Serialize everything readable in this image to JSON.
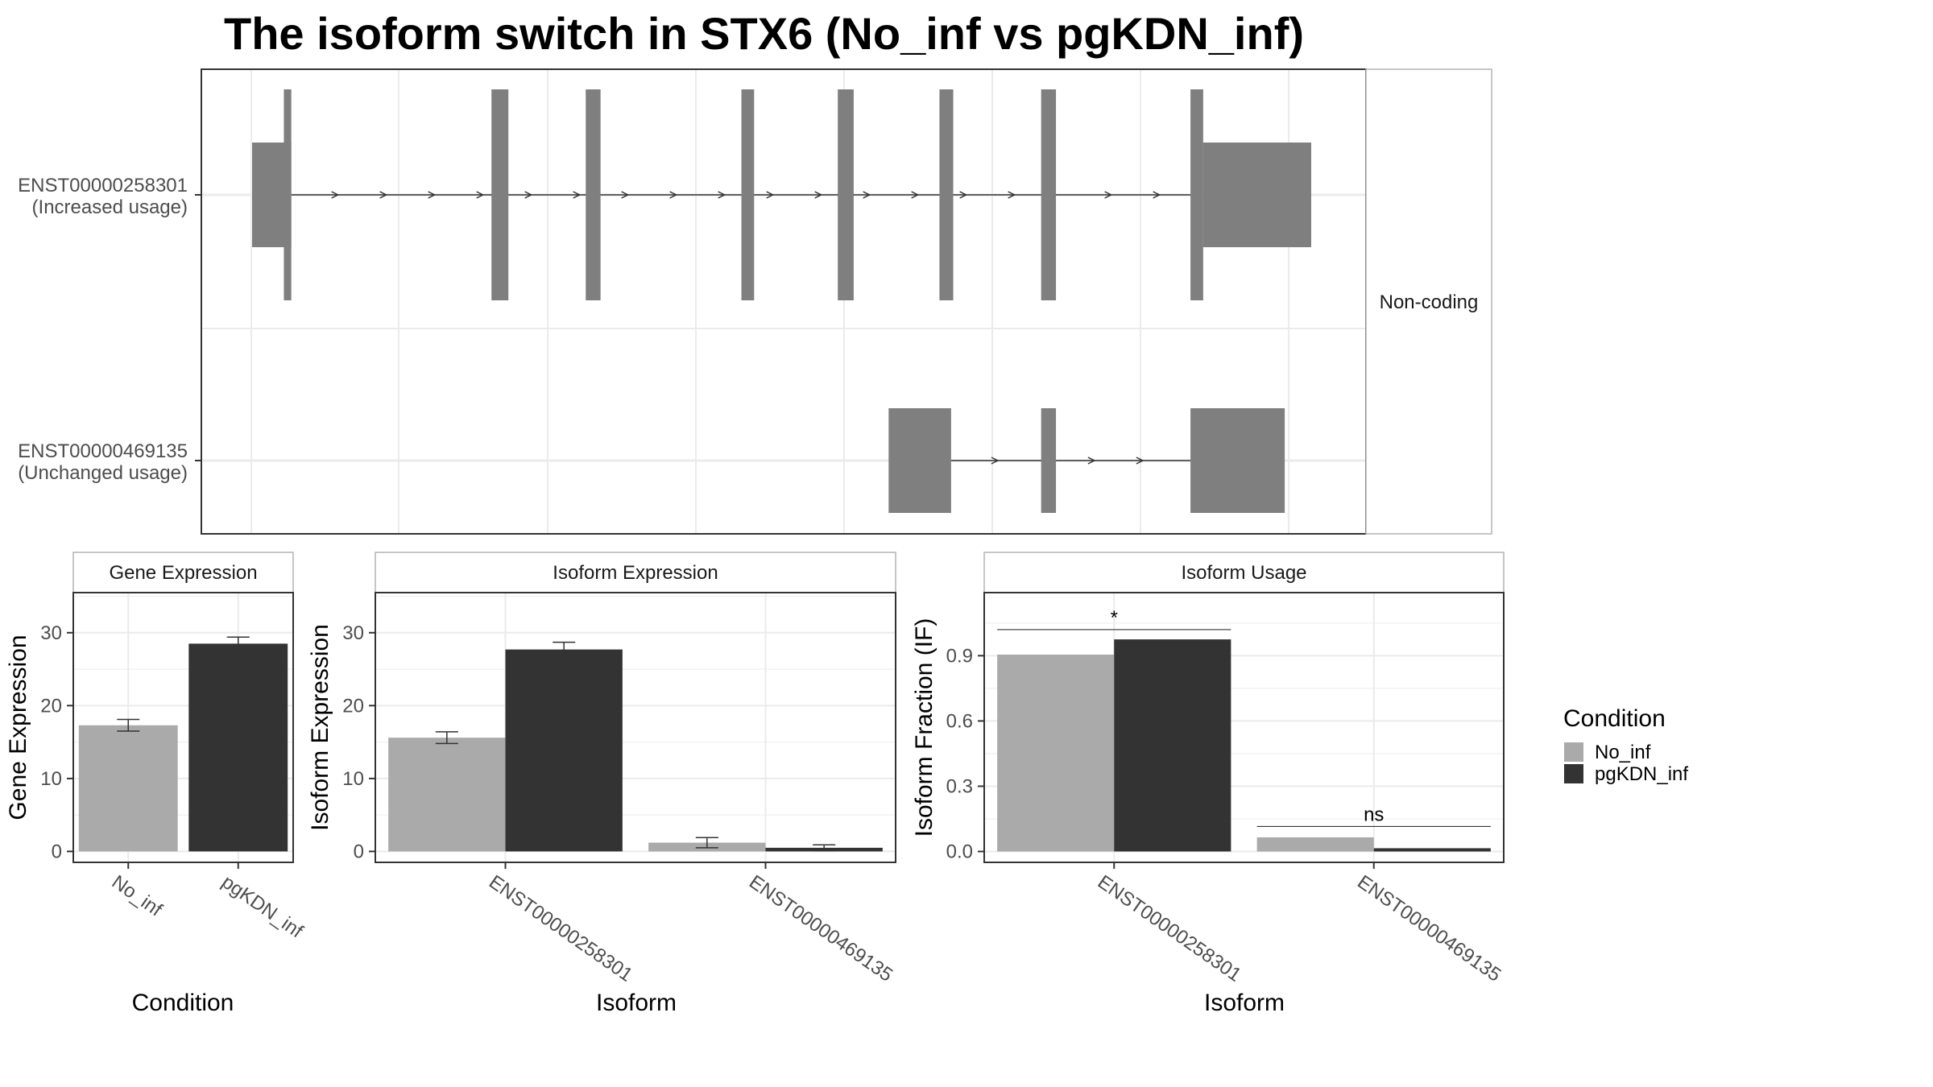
{
  "title": "The isoform switch in STX6 (No_inf vs pgKDN_inf)",
  "colors": {
    "No_inf": "#aaaaaa",
    "pgKDN_inf": "#333333",
    "exon": "#7f7f7f",
    "grid": "#ebebeb",
    "panel_border": "#333333"
  },
  "chart_data": [
    {
      "type": "transcript-structure",
      "facet_label": "Non-coding",
      "x_range": [
        0,
        100
      ],
      "isoforms": [
        {
          "id": "ENST00000258301",
          "usage": "(Increased usage)",
          "exons": [
            {
              "start": 0.0,
              "end": 3.7,
              "kind": "utr"
            },
            {
              "start": 3.0,
              "end": 3.7,
              "kind": "cds"
            },
            {
              "start": 22.6,
              "end": 24.2,
              "kind": "cds"
            },
            {
              "start": 31.5,
              "end": 32.9,
              "kind": "cds"
            },
            {
              "start": 46.2,
              "end": 47.4,
              "kind": "cds"
            },
            {
              "start": 55.3,
              "end": 56.8,
              "kind": "cds"
            },
            {
              "start": 64.9,
              "end": 66.2,
              "kind": "cds"
            },
            {
              "start": 74.5,
              "end": 75.9,
              "kind": "cds"
            },
            {
              "start": 88.6,
              "end": 89.8,
              "kind": "cds"
            },
            {
              "start": 89.8,
              "end": 100.0,
              "kind": "utr"
            }
          ]
        },
        {
          "id": "ENST00000469135",
          "usage": "(Unchanged usage)",
          "exons": [
            {
              "start": 60.1,
              "end": 66.0,
              "kind": "utr"
            },
            {
              "start": 74.5,
              "end": 75.9,
              "kind": "utr"
            },
            {
              "start": 88.6,
              "end": 97.5,
              "kind": "utr"
            }
          ]
        }
      ]
    },
    {
      "type": "bar",
      "title": "Gene Expression",
      "xlabel": "Condition",
      "ylabel": "Gene Expression",
      "categories": [
        "No_inf",
        "pgKDN_inf"
      ],
      "values": [
        17.3,
        28.5
      ],
      "errors": [
        0.8,
        0.9
      ],
      "ylim": [
        -1.5,
        35.5
      ],
      "yticks": [
        0,
        10,
        20,
        30
      ]
    },
    {
      "type": "bar",
      "title": "Isoform Expression",
      "xlabel": "Isoform",
      "ylabel": "Isoform Expression",
      "categories": [
        "ENST00000258301",
        "ENST00000469135"
      ],
      "series": [
        {
          "name": "No_inf",
          "values": [
            15.6,
            1.2
          ],
          "errors": [
            0.8,
            0.7
          ]
        },
        {
          "name": "pgKDN_inf",
          "values": [
            27.7,
            0.5
          ],
          "errors": [
            1.0,
            0.4
          ]
        }
      ],
      "ylim": [
        -1.5,
        35.5
      ],
      "yticks": [
        0,
        10,
        20,
        30
      ]
    },
    {
      "type": "bar",
      "title": "Isoform Usage",
      "xlabel": "Isoform",
      "ylabel": "Isoform Fraction (IF)",
      "categories": [
        "ENST00000258301",
        "ENST00000469135"
      ],
      "series": [
        {
          "name": "No_inf",
          "values": [
            0.905,
            0.065
          ]
        },
        {
          "name": "pgKDN_inf",
          "values": [
            0.975,
            0.015
          ]
        }
      ],
      "significance": [
        {
          "category": "ENST00000258301",
          "label": "*",
          "y": 1.02
        },
        {
          "category": "ENST00000469135",
          "label": "ns",
          "y": 0.115
        }
      ],
      "ylim": [
        -0.05,
        1.19
      ],
      "yticks": [
        0.0,
        0.3,
        0.6,
        0.9
      ],
      "ytick_labels": [
        "0.0",
        "0.3",
        "0.6",
        "0.9"
      ]
    }
  ],
  "legend": {
    "title": "Condition",
    "items": [
      "No_inf",
      "pgKDN_inf"
    ]
  }
}
